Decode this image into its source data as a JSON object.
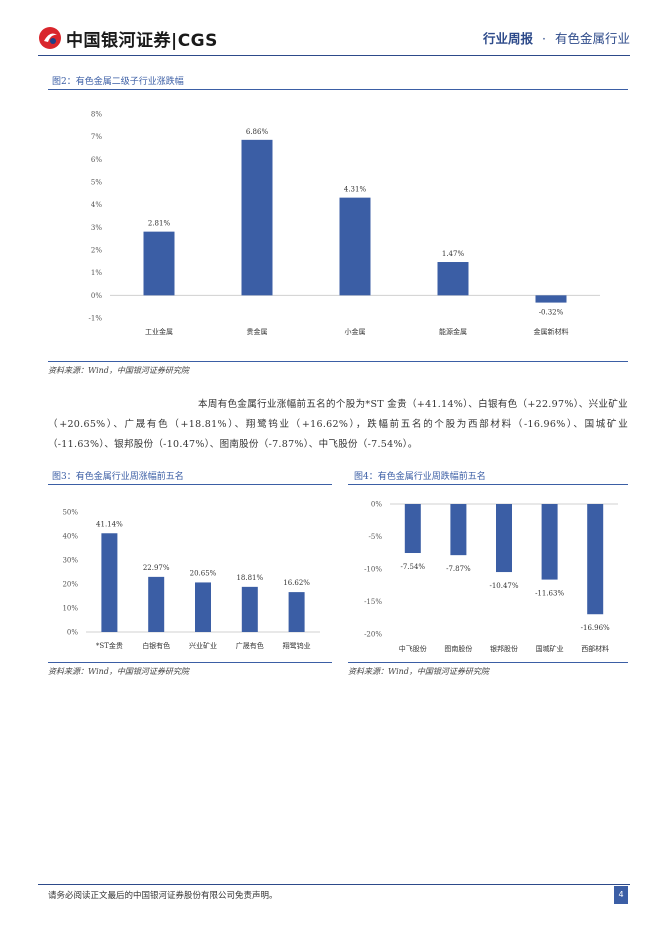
{
  "header": {
    "logo_text": "中国银河证券|CGS",
    "report_type": "行业周报",
    "separator": "·",
    "industry": "有色金属行业"
  },
  "fig2": {
    "title": "图2：有色金属二级子行业涨跌幅",
    "source": "资料来源：Wind，中国银河证券研究院"
  },
  "paragraph": "本周有色金属行业涨幅前五名的个股为*ST 金贵（+41.14%）、白银有色（+22.97%）、兴业矿业（+20.65%）、广晟有色（+18.81%）、翔鹭钨业（+16.62%），跌幅前五名的个股为西部材料（-16.96%）、国城矿业（-11.63%）、银邦股份（-10.47%）、图南股份（-7.87%）、中飞股份（-7.54%）。",
  "fig3": {
    "title": "图3：有色金属行业周涨幅前五名",
    "source": "资料来源：Wind，中国银河证券研究院"
  },
  "fig4": {
    "title": "图4：有色金属行业周跌幅前五名",
    "source": "资料来源：Wind，中国银河证券研究院"
  },
  "footer": {
    "disclaimer": "请务必阅读正文最后的中国银河证券股份有限公司免责声明。",
    "page_number": "4"
  },
  "chart_data": [
    {
      "type": "bar",
      "categories": [
        "工业金属",
        "贵金属",
        "小金属",
        "能源金属",
        "金属新材料"
      ],
      "values": [
        2.81,
        6.86,
        4.31,
        1.47,
        -0.32
      ],
      "data_labels": [
        "2.81%",
        "6.86%",
        "4.31%",
        "1.47%",
        "-0.32%"
      ],
      "ylim": [
        -1,
        8
      ],
      "yticks": [
        "-1%",
        "0%",
        "1%",
        "2%",
        "3%",
        "4%",
        "5%",
        "6%",
        "7%",
        "8%"
      ],
      "bar_color": "#3b5ea5",
      "grid": false
    },
    {
      "type": "bar",
      "categories": [
        "*ST金贵",
        "白银有色",
        "兴业矿业",
        "广晟有色",
        "翔鹭钨业"
      ],
      "values": [
        41.14,
        22.97,
        20.65,
        18.81,
        16.62
      ],
      "data_labels": [
        "41.14%",
        "22.97%",
        "20.65%",
        "18.81%",
        "16.62%"
      ],
      "ylim": [
        0,
        50
      ],
      "yticks": [
        "0%",
        "10%",
        "20%",
        "30%",
        "40%",
        "50%"
      ],
      "bar_color": "#3b5ea5",
      "grid": false
    },
    {
      "type": "bar",
      "categories": [
        "中飞股份",
        "图南股份",
        "银邦股份",
        "国城矿业",
        "西部材料"
      ],
      "values": [
        -7.54,
        -7.87,
        -10.47,
        -11.63,
        -16.96
      ],
      "data_labels": [
        "-7.54%",
        "-7.87%",
        "-10.47%",
        "-11.63%",
        "-16.96%"
      ],
      "ylim": [
        -20,
        0
      ],
      "yticks": [
        "-20%",
        "-15%",
        "-10%",
        "-5%",
        "0%"
      ],
      "bar_color": "#3b5ea5",
      "grid": false
    }
  ]
}
